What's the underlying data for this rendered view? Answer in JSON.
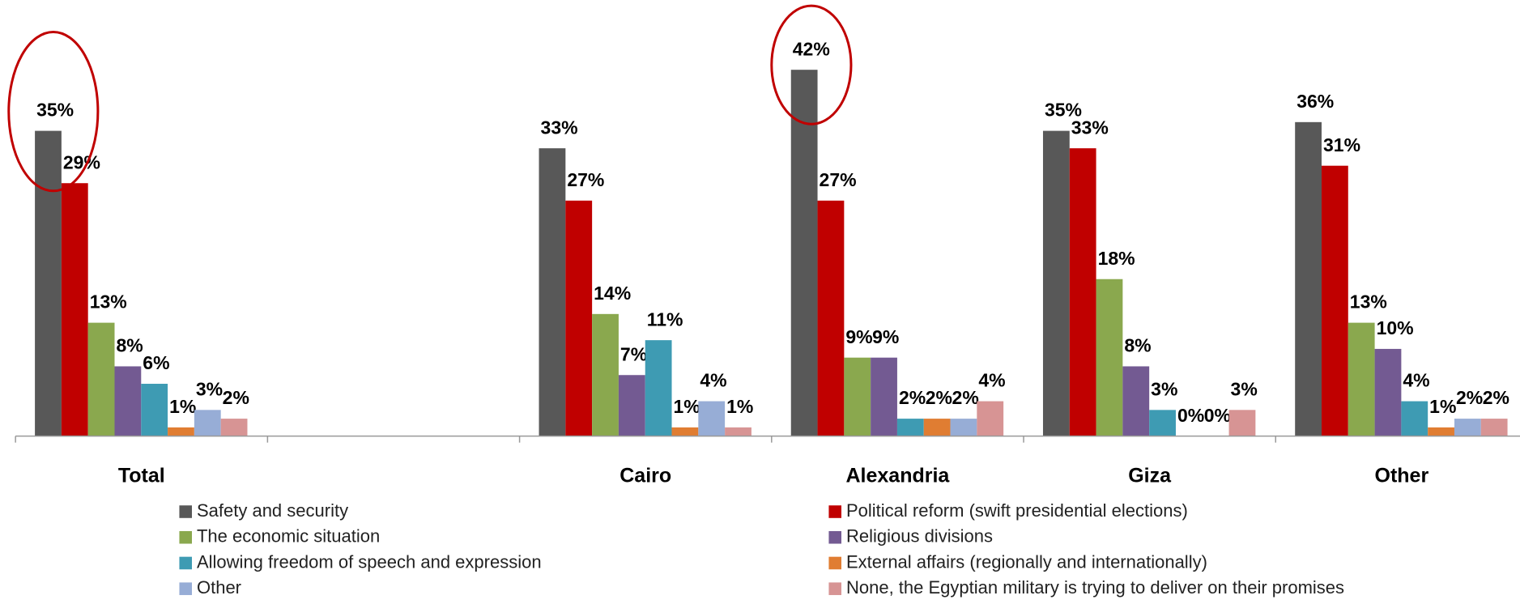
{
  "chart_data": {
    "type": "bar",
    "categories": [
      "Total",
      null,
      "Cairo",
      "Alexandria",
      "Giza",
      "Other"
    ],
    "ylim": [
      0,
      50
    ],
    "series": [
      {
        "name": "Safety and security",
        "color": "#585858",
        "values": [
          35,
          null,
          33,
          42,
          35,
          36
        ],
        "value_labels": [
          "35%",
          null,
          "33%",
          "42%",
          "35%",
          "36%"
        ]
      },
      {
        "name": "Political reform (swift presidential elections)",
        "color": "#c00000",
        "values": [
          29,
          null,
          27,
          27,
          33,
          31
        ],
        "value_labels": [
          "29%",
          null,
          "27%",
          "27%",
          "33%",
          "31%"
        ]
      },
      {
        "name": "The economic situation",
        "color": "#8aa84e",
        "values": [
          13,
          null,
          14,
          9,
          18,
          13
        ],
        "value_labels": [
          "13%",
          null,
          "14%",
          "9%",
          "18%",
          "13%"
        ]
      },
      {
        "name": "Religious divisions",
        "color": "#735a92",
        "values": [
          8,
          null,
          7,
          9,
          8,
          10
        ],
        "value_labels": [
          "8%",
          null,
          "7%",
          "9%",
          "8%",
          "10%"
        ]
      },
      {
        "name": "Allowing freedom of speech and expression",
        "color": "#3e9bb3",
        "values": [
          6,
          null,
          11,
          2,
          3,
          4
        ],
        "value_labels": [
          "6%",
          null,
          "11%",
          "2%",
          "3%",
          "4%"
        ]
      },
      {
        "name": "External affairs (regionally and internationally)",
        "color": "#e07d32",
        "values": [
          1,
          null,
          1,
          2,
          0,
          1
        ],
        "value_labels": [
          "1%",
          null,
          "1%",
          "2%",
          "0%",
          "1%"
        ]
      },
      {
        "name": "Other",
        "color": "#97add6",
        "values": [
          3,
          null,
          4,
          2,
          0,
          2
        ],
        "value_labels": [
          "3%",
          null,
          "4%",
          "2%",
          "0%",
          "2%"
        ]
      },
      {
        "name": "None, the Egyptian military is trying to deliver on their promises",
        "color": "#d79494",
        "values": [
          2,
          null,
          1,
          4,
          3,
          2
        ],
        "value_labels": [
          "2%",
          null,
          "1%",
          "4%",
          "3%",
          "2%"
        ]
      }
    ]
  }
}
